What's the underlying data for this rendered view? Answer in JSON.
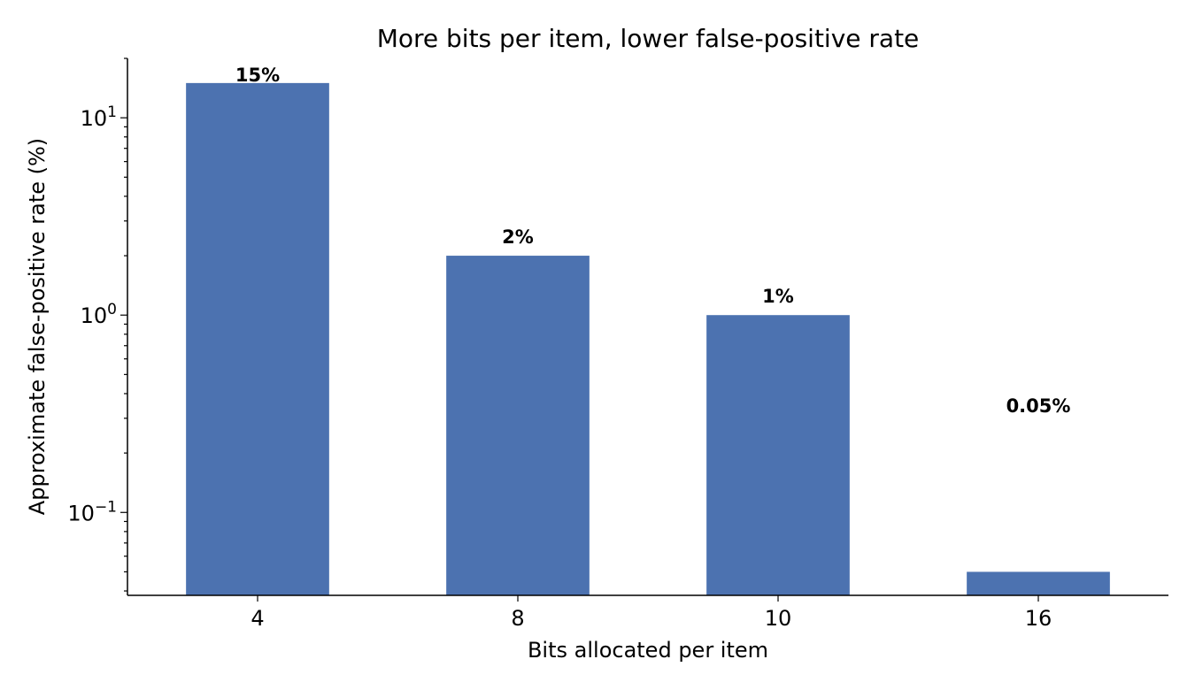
{
  "chart_data": {
    "type": "bar",
    "title": "More bits per item, lower false-positive rate",
    "xlabel": "Bits allocated per item",
    "ylabel": "Approximate false-positive rate (%)",
    "categories": [
      "4",
      "8",
      "10",
      "16"
    ],
    "values": [
      15,
      2,
      1,
      0.05
    ],
    "data_labels": [
      "15%",
      "2%",
      "1%",
      "0.05%"
    ],
    "y_scale": "log",
    "ylim": [
      0.038,
      20
    ],
    "y_major_ticks": [
      {
        "value": 10,
        "base": "10",
        "exp": "1"
      },
      {
        "value": 1,
        "base": "10",
        "exp": "0"
      },
      {
        "value": 0.1,
        "base": "10",
        "exp": "−1"
      }
    ],
    "grid": false,
    "bar_color": "#4c72b0"
  }
}
